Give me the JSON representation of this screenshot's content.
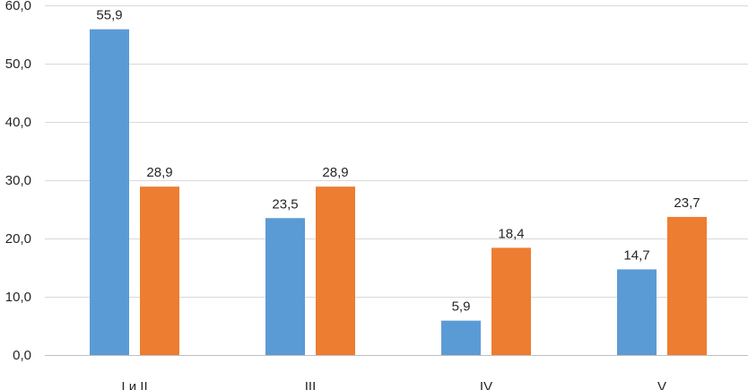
{
  "chart_data": {
    "type": "bar",
    "title": "",
    "xlabel": "",
    "ylabel": "",
    "categories": [
      "I и II",
      "III",
      "IV",
      "V"
    ],
    "series": [
      {
        "color": "#5b9bd5",
        "values": [
          55.9,
          23.5,
          5.9,
          14.7
        ]
      },
      {
        "color": "#ed7d31",
        "values": [
          28.9,
          28.9,
          18.4,
          23.7
        ]
      }
    ],
    "ylim": [
      0,
      60
    ],
    "yticks": [
      0,
      10,
      20,
      30,
      40,
      50,
      60
    ],
    "ytick_labels": [
      "0,0",
      "10,0",
      "20,0",
      "30,0",
      "40,0",
      "50,0",
      "60,0"
    ],
    "data_labels": [
      [
        "55,9",
        "23,5",
        "5,9",
        "14,7"
      ],
      [
        "28,9",
        "28,9",
        "18,4",
        "23,7"
      ]
    ],
    "grid": true,
    "legend": "none"
  }
}
